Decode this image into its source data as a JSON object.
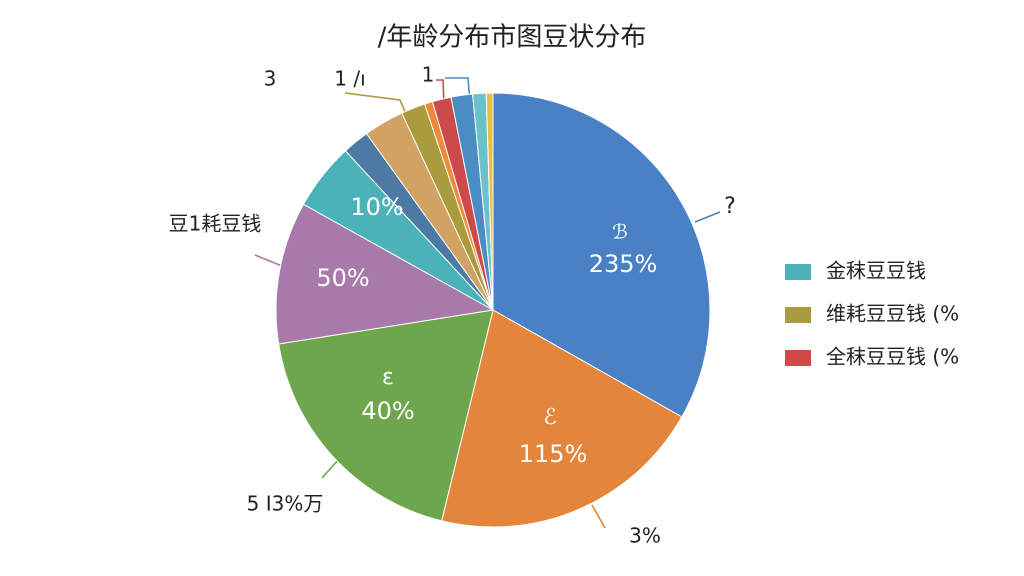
{
  "chart_data": {
    "type": "pie",
    "title": "/年龄分布市图豆状分布",
    "values": [
      33.2,
      20.6,
      18.7,
      10.6,
      5,
      2,
      3,
      1.8,
      0.6,
      1.4,
      1.6,
      1,
      0.5
    ],
    "colors": [
      "#4a80c6",
      "#e4853c",
      "#6ea64e",
      "#a87aaa",
      "#4ab2b8",
      "#4c7aa2",
      "#d2a262",
      "#aa9c3c",
      "#ec8a3a",
      "#cc4a4a",
      "#4c8cc4",
      "#6cc2ca",
      "#e8c040"
    ],
    "annotations": [
      "3",
      "1 /ı",
      "1",
      "?",
      "豆1耗豆钱",
      "5 I3%万",
      "3%",
      "10%",
      "50%",
      "ε",
      "40%",
      "ℰ",
      "115%",
      "ℬ",
      "235%"
    ],
    "legend": [
      {
        "name": "金秣豆豆钱",
        "color": "#4ab2b8"
      },
      {
        "name": "维耗豆豆钱 (%",
        "color": "#aa9c3c"
      },
      {
        "name": "全秣豆豆钱 (%",
        "color": "#cc4a4a"
      }
    ]
  }
}
